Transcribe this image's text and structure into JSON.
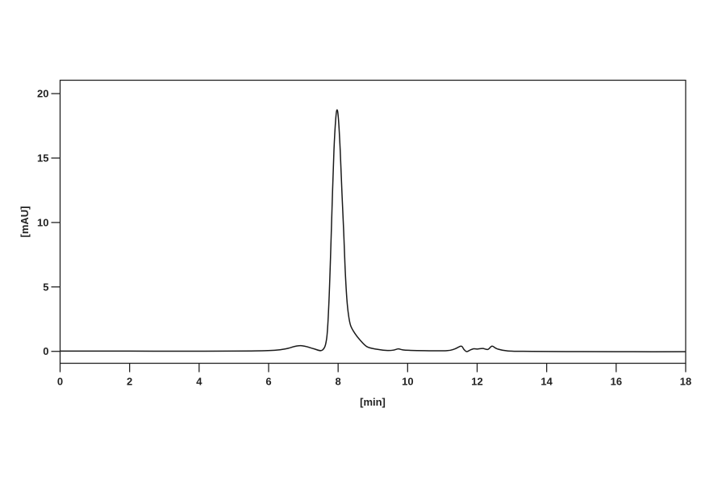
{
  "chart_data": {
    "type": "line",
    "title": "",
    "xlabel": "[min]",
    "ylabel": "[mAU]",
    "xlim": [
      0,
      18
    ],
    "ylim": [
      -0.94,
      21.0
    ],
    "x_ticks": [
      0,
      2,
      4,
      6,
      8,
      10,
      12,
      14,
      16,
      18
    ],
    "y_ticks": [
      0,
      5,
      10,
      15,
      20
    ],
    "grid": false,
    "line_color": "#1a1a1a",
    "series": [
      {
        "x": [
          0,
          2,
          4,
          5.5,
          6.17,
          6.5,
          6.75,
          6.92,
          7.1,
          7.3,
          7.55,
          7.67,
          7.73,
          7.78,
          7.83,
          7.88,
          7.93,
          7.97,
          8.01,
          8.06,
          8.11,
          8.16,
          8.2,
          8.25,
          8.3,
          8.36,
          8.48,
          8.63,
          8.83,
          9.1,
          9.42,
          9.6,
          9.73,
          9.85,
          10.03,
          10.5,
          11.12,
          11.35,
          11.54,
          11.62,
          11.7,
          11.8,
          11.9,
          12.0,
          12.16,
          12.31,
          12.43,
          12.58,
          12.89,
          13.59,
          15,
          16.5,
          18
        ],
        "y": [
          0.02,
          0.02,
          0.01,
          0.03,
          0.08,
          0.2,
          0.38,
          0.44,
          0.36,
          0.2,
          0.1,
          1.0,
          3.5,
          7.2,
          11.6,
          15.6,
          18.0,
          18.75,
          18.0,
          15.6,
          12.3,
          9.3,
          6.5,
          4.1,
          2.8,
          2.0,
          1.4,
          0.88,
          0.36,
          0.17,
          0.07,
          0.1,
          0.19,
          0.12,
          0.08,
          0.05,
          0.05,
          0.18,
          0.4,
          0.15,
          -0.02,
          0.1,
          0.2,
          0.18,
          0.22,
          0.15,
          0.4,
          0.19,
          0.03,
          0.0,
          -0.02,
          -0.03,
          -0.03
        ]
      }
    ]
  }
}
